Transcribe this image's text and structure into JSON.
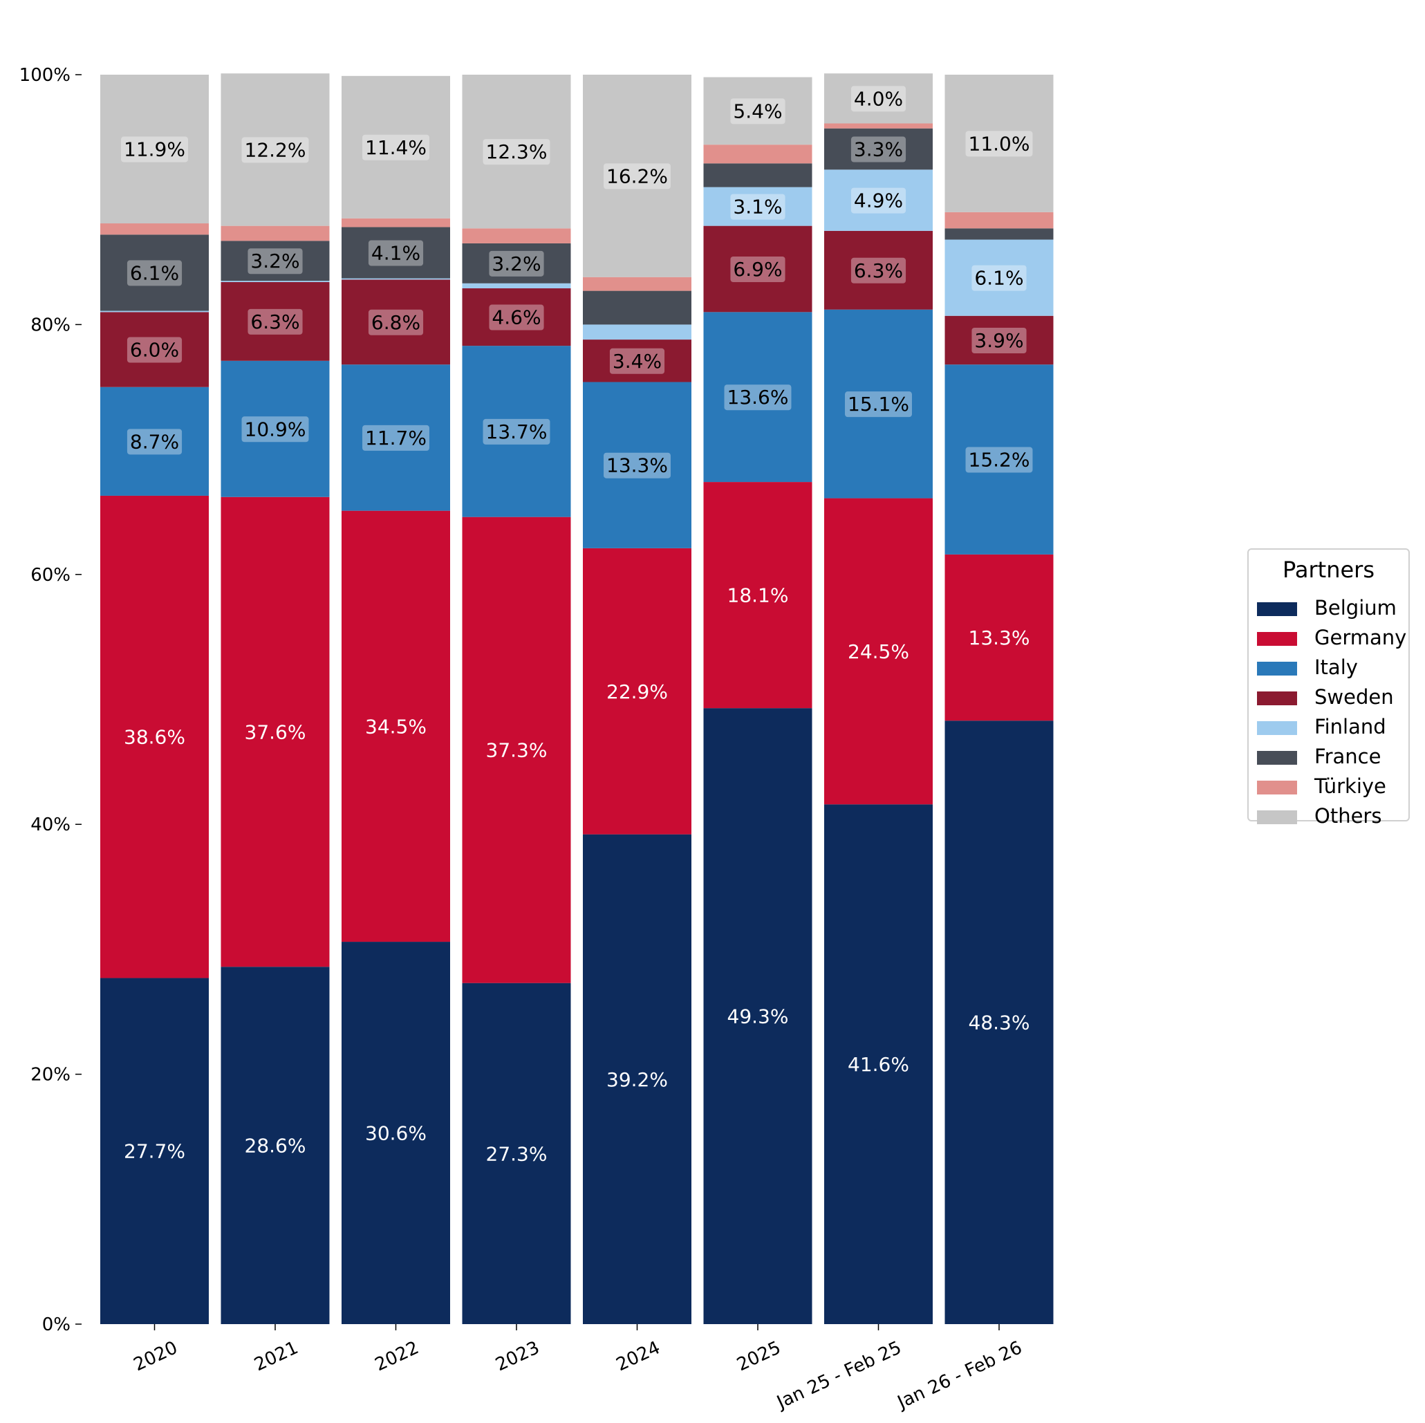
{
  "chart_data": {
    "type": "bar",
    "stacked": true,
    "categories": [
      "2020",
      "2021",
      "2022",
      "2023",
      "2024",
      "2025",
      "Jan 25 - Feb 25",
      "Jan 26 - Feb 26"
    ],
    "ylim": [
      0,
      100
    ],
    "yticks": [
      "0%",
      "20%",
      "40%",
      "60%",
      "80%",
      "100%"
    ],
    "ytick_values": [
      0,
      20,
      40,
      60,
      80,
      100
    ],
    "grid": false,
    "legend": {
      "title": "Partners",
      "placement": "right"
    },
    "series": [
      {
        "name": "Belgium",
        "color": "#0d2b5c",
        "label_color": "#ffffff",
        "values": [
          27.7,
          28.6,
          30.6,
          27.3,
          39.2,
          49.3,
          41.6,
          48.3
        ],
        "labels": [
          "27.7%",
          "28.6%",
          "30.6%",
          "27.3%",
          "39.2%",
          "49.3%",
          "41.6%",
          "48.3%"
        ]
      },
      {
        "name": "Germany",
        "color": "#c90c33",
        "label_color": "#ffffff",
        "values": [
          38.6,
          37.6,
          34.5,
          37.3,
          22.9,
          18.1,
          24.5,
          13.3
        ],
        "labels": [
          "38.6%",
          "37.6%",
          "34.5%",
          "37.3%",
          "22.9%",
          "18.1%",
          "24.5%",
          "13.3%"
        ]
      },
      {
        "name": "Italy",
        "color": "#2a79b9",
        "label_color": "#000000",
        "values": [
          8.7,
          10.9,
          11.7,
          13.7,
          13.3,
          13.6,
          15.1,
          15.2
        ],
        "labels": [
          "8.7%",
          "10.9%",
          "11.7%",
          "13.7%",
          "13.3%",
          "13.6%",
          "15.1%",
          "15.2%"
        ]
      },
      {
        "name": "Sweden",
        "color": "#8b1a30",
        "label_color": "#000000",
        "values": [
          6.0,
          6.3,
          6.8,
          4.6,
          3.4,
          6.9,
          6.3,
          3.9
        ],
        "labels": [
          "6.0%",
          "6.3%",
          "6.8%",
          "4.6%",
          "3.4%",
          "6.9%",
          "6.3%",
          "3.9%"
        ]
      },
      {
        "name": "Finland",
        "color": "#9ecbee",
        "label_color": "#000000",
        "values": [
          0.1,
          0.1,
          0.1,
          0.4,
          1.2,
          3.1,
          4.9,
          6.1
        ],
        "labels": [
          "",
          "",
          "",
          "",
          "",
          "3.1%",
          "4.9%",
          "6.1%"
        ]
      },
      {
        "name": "France",
        "color": "#474d57",
        "label_color": "#000000",
        "values": [
          6.1,
          3.2,
          4.1,
          3.2,
          2.7,
          1.9,
          3.3,
          0.9
        ],
        "labels": [
          "6.1%",
          "3.2%",
          "4.1%",
          "3.2%",
          "",
          "",
          "3.3%",
          ""
        ]
      },
      {
        "name": "Türkiye",
        "color": "#e1908c",
        "label_color": "#000000",
        "values": [
          0.9,
          1.2,
          0.7,
          1.2,
          1.1,
          1.5,
          0.4,
          1.3
        ],
        "labels": [
          "",
          "",
          "",
          "",
          "",
          "",
          "",
          ""
        ]
      },
      {
        "name": "Others",
        "color": "#c6c6c6",
        "label_color": "#000000",
        "values": [
          11.9,
          12.2,
          11.4,
          12.3,
          16.2,
          5.4,
          4.0,
          11.0
        ],
        "labels": [
          "11.9%",
          "12.2%",
          "11.4%",
          "12.3%",
          "16.2%",
          "5.4%",
          "4.0%",
          "11.0%"
        ]
      }
    ]
  }
}
